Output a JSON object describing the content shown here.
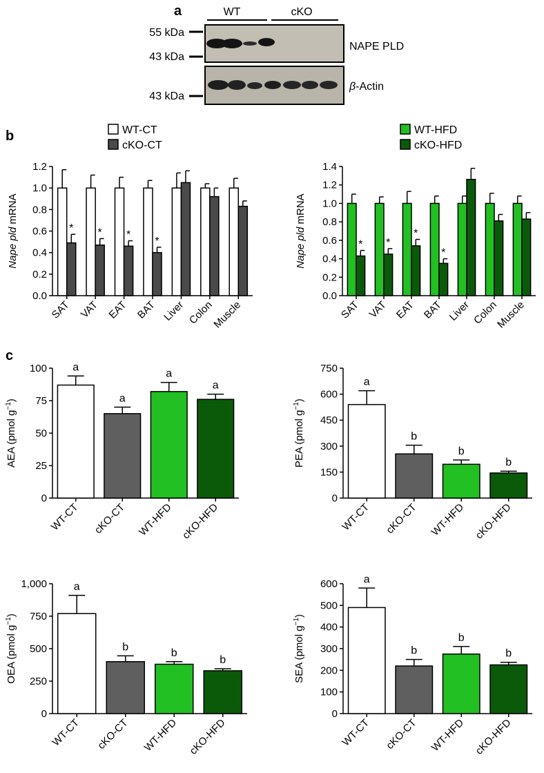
{
  "panel_labels": {
    "a": "a",
    "b": "b",
    "c": "c"
  },
  "blot": {
    "group_labels": [
      "WT",
      "cKO"
    ],
    "markers": [
      "55 kDa",
      "43 kDa",
      "43 kDa"
    ],
    "band_labels": {
      "nape": "NAPE PLD",
      "actin_prefix": "β",
      "actin_rest": "-Actin"
    }
  },
  "colors": {
    "wt_ct": "#ffffff",
    "cko_ct": "#4a4a4a",
    "cko_ct_c": "#5f5f5f",
    "wt_hfd": "#22c022",
    "cko_hfd": "#0a5a0a"
  },
  "chart_data": [
    {
      "type": "bar",
      "panel": "b-left",
      "legend": [
        "WT-CT",
        "cKO-CT"
      ],
      "ylabel_italic": "Nape pld",
      "ylabel_rest": " mRNA",
      "categories": [
        "SAT",
        "VAT",
        "EAT",
        "BAT",
        "Liver",
        "Colon",
        "Muscle"
      ],
      "ylim": [
        0,
        1.2
      ],
      "yticks": [
        "0.0",
        "0.2",
        "0.4",
        "0.6",
        "0.8",
        "1.0",
        "1.2"
      ],
      "series": [
        {
          "name": "WT-CT",
          "values": [
            1.0,
            1.0,
            1.0,
            1.0,
            1.0,
            1.0,
            1.0
          ],
          "errors": [
            0.17,
            0.12,
            0.1,
            0.07,
            0.14,
            0.04,
            0.09
          ]
        },
        {
          "name": "cKO-CT",
          "values": [
            0.49,
            0.47,
            0.46,
            0.4,
            1.05,
            0.92,
            0.83
          ],
          "errors": [
            0.08,
            0.06,
            0.05,
            0.05,
            0.11,
            0.08,
            0.05
          ]
        }
      ],
      "significance": [
        "*",
        "*",
        "*",
        "*",
        "",
        "",
        ""
      ]
    },
    {
      "type": "bar",
      "panel": "b-right",
      "legend": [
        "WT-HFD",
        "cKO-HFD"
      ],
      "ylabel_italic": "Nape pld",
      "ylabel_rest": " mRNA",
      "categories": [
        "SAT",
        "VAT",
        "EAT",
        "BAT",
        "Liver",
        "Colon",
        "Muscle"
      ],
      "ylim": [
        0,
        1.4
      ],
      "yticks": [
        "0.0",
        "0.2",
        "0.4",
        "0.6",
        "0.8",
        "1.0",
        "1.2",
        "1.4"
      ],
      "series": [
        {
          "name": "WT-HFD",
          "values": [
            1.0,
            1.0,
            1.0,
            1.0,
            1.0,
            1.0,
            1.0
          ],
          "errors": [
            0.1,
            0.07,
            0.13,
            0.08,
            0.08,
            0.11,
            0.08
          ]
        },
        {
          "name": "cKO-HFD",
          "values": [
            0.43,
            0.45,
            0.54,
            0.35,
            1.26,
            0.81,
            0.83
          ],
          "errors": [
            0.06,
            0.06,
            0.07,
            0.05,
            0.12,
            0.07,
            0.07
          ]
        }
      ],
      "significance": [
        "*",
        "*",
        "*",
        "*",
        "",
        "",
        ""
      ]
    },
    {
      "type": "bar",
      "panel": "c-AEA",
      "ylabel": "AEA (pmol g",
      "ylabel_sup": "−1",
      "ylabel_close": ")",
      "categories": [
        "WT-CT",
        "cKO-CT",
        "WT-HFD",
        "cKO-HFD"
      ],
      "ylim": [
        0,
        100
      ],
      "yticks": [
        "0",
        "25",
        "50",
        "75",
        "100"
      ],
      "values": [
        87,
        65,
        82,
        76
      ],
      "errors": [
        7,
        5,
        7,
        4
      ],
      "letters": [
        "a",
        "a",
        "a",
        "a"
      ]
    },
    {
      "type": "bar",
      "panel": "c-PEA",
      "ylabel": "PEA (pmol g",
      "ylabel_sup": "−1",
      "ylabel_close": ")",
      "categories": [
        "WT-CT",
        "cKO-CT",
        "WT-HFD",
        "cKO-HFD"
      ],
      "ylim": [
        0,
        750
      ],
      "yticks": [
        "0",
        "150",
        "300",
        "450",
        "600",
        "750"
      ],
      "values": [
        540,
        255,
        195,
        145
      ],
      "errors": [
        80,
        50,
        25,
        10
      ],
      "letters": [
        "a",
        "b",
        "b",
        "b"
      ]
    },
    {
      "type": "bar",
      "panel": "c-OEA",
      "ylabel": "OEA (pmol g",
      "ylabel_sup": "−1",
      "ylabel_close": ")",
      "categories": [
        "WT-CT",
        "cKO-CT",
        "WT-HFD",
        "cKO-HFD"
      ],
      "ylim": [
        0,
        1000
      ],
      "yticks": [
        "0",
        "250",
        "500",
        "750",
        "1,000"
      ],
      "values": [
        770,
        400,
        380,
        330
      ],
      "errors": [
        140,
        45,
        20,
        15
      ],
      "letters": [
        "a",
        "b",
        "b",
        "b"
      ]
    },
    {
      "type": "bar",
      "panel": "c-SEA",
      "ylabel": "SEA (pmol g",
      "ylabel_sup": "−1",
      "ylabel_close": ")",
      "categories": [
        "WT-CT",
        "cKO-CT",
        "WT-HFD",
        "cKO-HFD"
      ],
      "ylim": [
        0,
        600
      ],
      "yticks": [
        "0",
        "100",
        "200",
        "300",
        "400",
        "500",
        "600"
      ],
      "values": [
        490,
        220,
        275,
        225
      ],
      "errors": [
        90,
        30,
        35,
        12
      ],
      "letters": [
        "a",
        "b",
        "b",
        "b"
      ]
    }
  ]
}
